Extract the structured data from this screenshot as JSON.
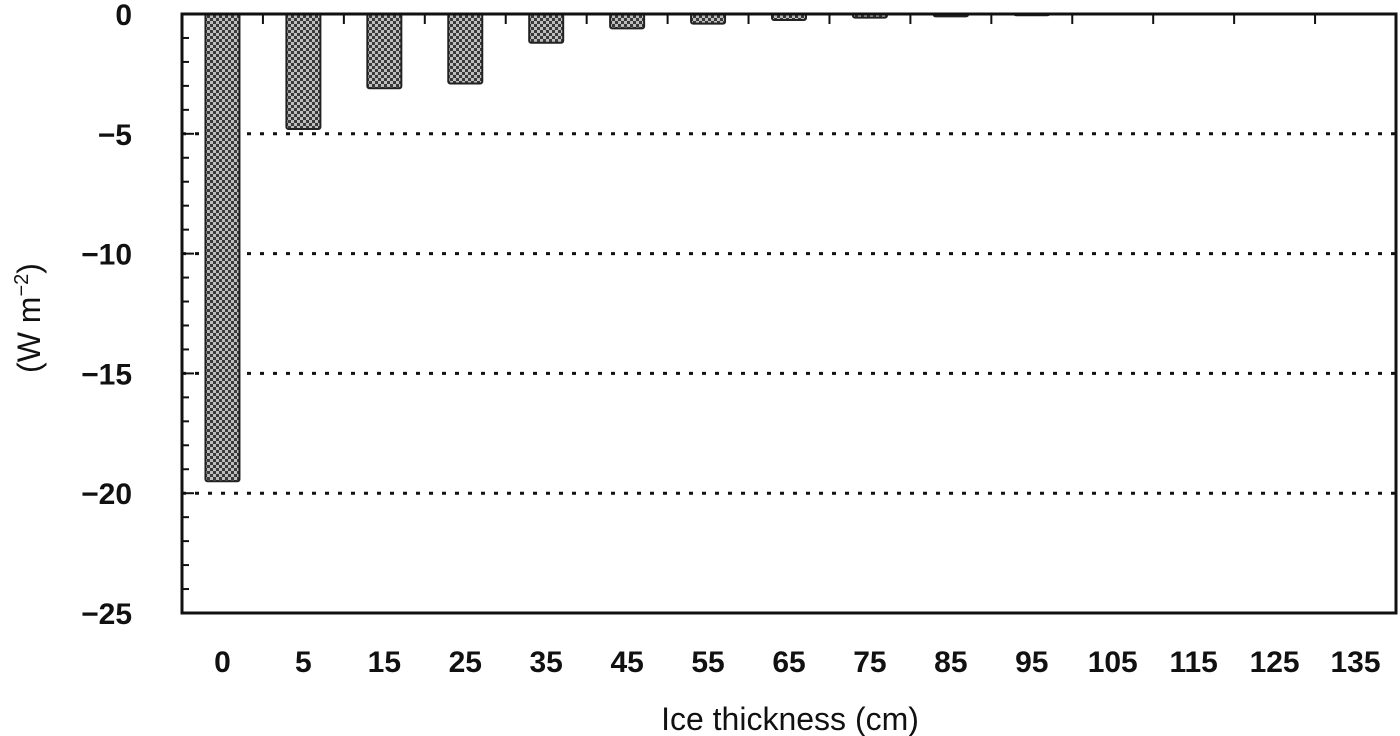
{
  "chart_data": {
    "type": "bar",
    "xlabel": "Ice thickness (cm)",
    "ylabel": "(W m",
    "ylabel_sup": "−2",
    "ylabel_close": ")",
    "categories": [
      "0",
      "5",
      "15",
      "25",
      "35",
      "45",
      "55",
      "65",
      "75",
      "85",
      "95",
      "105",
      "115",
      "125",
      "135"
    ],
    "values": [
      -19.5,
      -4.8,
      -3.1,
      -2.9,
      -1.2,
      -0.6,
      -0.4,
      -0.25,
      -0.15,
      -0.1,
      -0.05,
      0,
      0,
      0,
      0
    ],
    "ylim": [
      -25,
      0
    ],
    "yticks": [
      "0",
      "−5",
      "−10",
      "−15",
      "−20",
      "−25"
    ],
    "ytick_values": [
      0,
      -5,
      -10,
      -15,
      -20,
      -25
    ],
    "grid": "horizontal dotted at -5, -10, -15, -20",
    "bar_color": "#777777"
  }
}
